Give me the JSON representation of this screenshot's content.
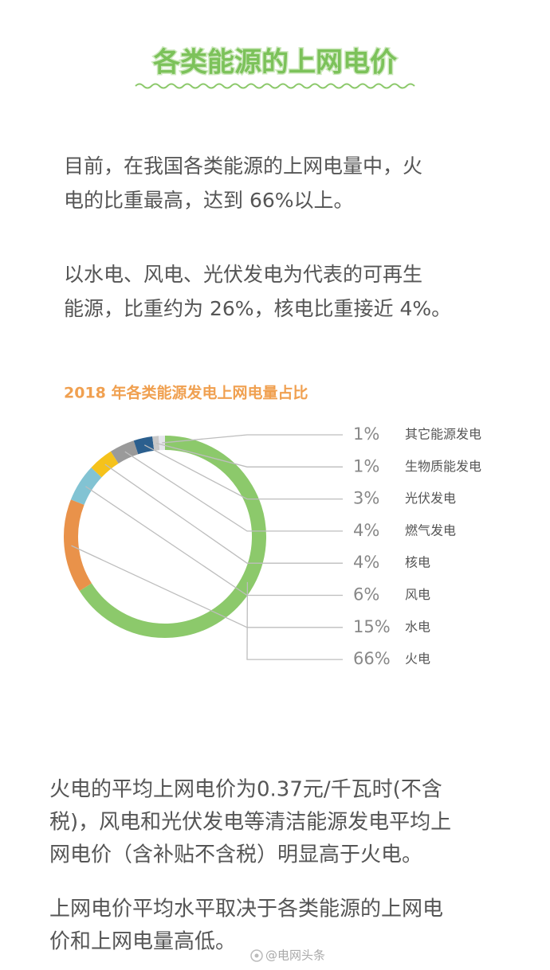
{
  "header": {
    "title": "各类能源的上网电价"
  },
  "intro": [
    [
      "目前，在我国各类能源的上网电量中，火",
      "电的比重最高，达到 66%以上。"
    ],
    [
      "以水电、风电、光伏发电为代表的可再生",
      "能源，比重约为 26%，核电比重接近 4%。"
    ]
  ],
  "chart_data": {
    "type": "donut",
    "title": "2018 年各类能源发电上网电量占比",
    "categories": [
      "其它能源发电",
      "生物质能发电",
      "光伏发电",
      "燃气发电",
      "核电",
      "风电",
      "水电",
      "火电"
    ],
    "values": [
      1,
      1,
      3,
      4,
      4,
      6,
      15,
      66
    ],
    "value_labels": [
      "1%",
      "1%",
      "3%",
      "4%",
      "4%",
      "6%",
      "15%",
      "66%"
    ],
    "colors": [
      "#e6e6ee",
      "#c8c8c8",
      "#2b5f8e",
      "#9a9a9a",
      "#f5c21b",
      "#82c3d3",
      "#e9924a",
      "#8cc96b"
    ]
  },
  "outro": [
    [
      "火电的平均上网电价为0.37元/千瓦时(不含",
      "税)，风电和光伏发电等清洁能源发电平均上",
      "网电价（含补贴不含税）明显高于火电。"
    ],
    [
      "上网电价平均水平取决于各类能源的上网电",
      "价和上网电量高低。"
    ]
  ],
  "watermark": "@电网头条"
}
